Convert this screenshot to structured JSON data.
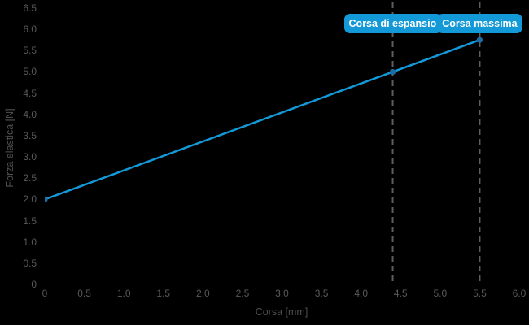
{
  "chart_data": {
    "type": "line",
    "title": "",
    "xlabel": "Corsa [mm]",
    "ylabel": "Forza elastica [N]",
    "xlim": [
      0,
      6
    ],
    "ylim": [
      0,
      6.5
    ],
    "grid": false,
    "legend": "none",
    "x_tick_labels": [
      "0",
      "0.5",
      "1.0",
      "1.5",
      "2.0",
      "2.5",
      "3.0",
      "3.5",
      "4.0",
      "4.5",
      "5.0",
      "5.5",
      "6.0"
    ],
    "y_tick_labels": [
      "0",
      "0.5",
      "1.0",
      "1.5",
      "2.0",
      "2.5",
      "3.0",
      "3.5",
      "4.0",
      "4.5",
      "5.0",
      "5.5",
      "6.0",
      "6.5"
    ],
    "series": [
      {
        "name": "Forza elastica",
        "points": [
          [
            0,
            2.0
          ],
          [
            4.4,
            5.0
          ],
          [
            5.5,
            5.75
          ]
        ],
        "line_color": "#1499d8",
        "marker": "circle",
        "marker_color": "#1d6da3"
      }
    ],
    "annotations": [
      {
        "x": 4.4,
        "label": "Corsa di espansione",
        "style": "dashed-vertical-line"
      },
      {
        "x": 5.5,
        "label": "Corsa massima",
        "style": "dashed-vertical-line"
      }
    ],
    "colors": {
      "background": "#000000",
      "line": "#1499d8",
      "marker": "#1d6da3",
      "reference_dash": "#5e5e5e",
      "tick_text": "#595959",
      "axis_title_text": "#4f4f4f",
      "annotation_bg": "#1499d8",
      "annotation_text": "#ffffff"
    }
  }
}
